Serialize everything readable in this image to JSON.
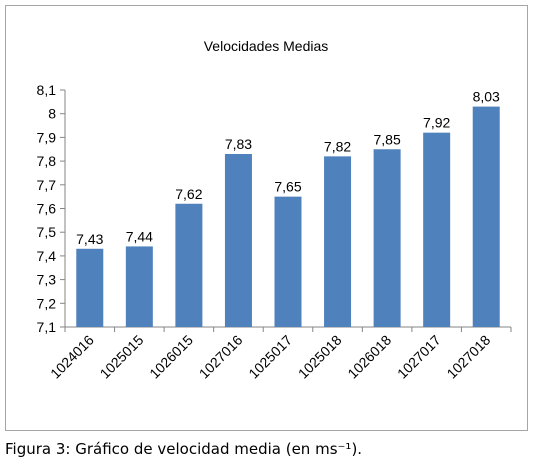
{
  "caption": {
    "figure_label": "Figura 3",
    "text": ": Gráfico de velocidad media (en ms⁻¹)."
  },
  "colors": {
    "bar": "#4f81bd",
    "axis": "#868686",
    "text": "#000000",
    "frame": "#a6a6a6"
  },
  "chart_data": {
    "type": "bar",
    "title": "Velocidades Medias",
    "xlabel": "",
    "ylabel": "",
    "categories": [
      "1024016",
      "1025015",
      "1026015",
      "1027016",
      "1025017",
      "1025018",
      "1026018",
      "1027017",
      "1027018"
    ],
    "values": [
      7.43,
      7.44,
      7.62,
      7.83,
      7.65,
      7.82,
      7.85,
      7.92,
      8.03
    ],
    "value_labels": [
      "7,43",
      "7,44",
      "7,62",
      "7,83",
      "7,65",
      "7,82",
      "7,85",
      "7,92",
      "8,03"
    ],
    "ylim": [
      7.1,
      8.1
    ],
    "yticks": [
      7.1,
      7.2,
      7.3,
      7.4,
      7.5,
      7.6,
      7.7,
      7.8,
      7.9,
      8,
      8.1
    ],
    "ytick_labels": [
      "7,1",
      "7,2",
      "7,3",
      "7,4",
      "7,5",
      "7,6",
      "7,7",
      "7,8",
      "7,9",
      "8",
      "8,1"
    ],
    "grid": false,
    "legend": "none"
  }
}
